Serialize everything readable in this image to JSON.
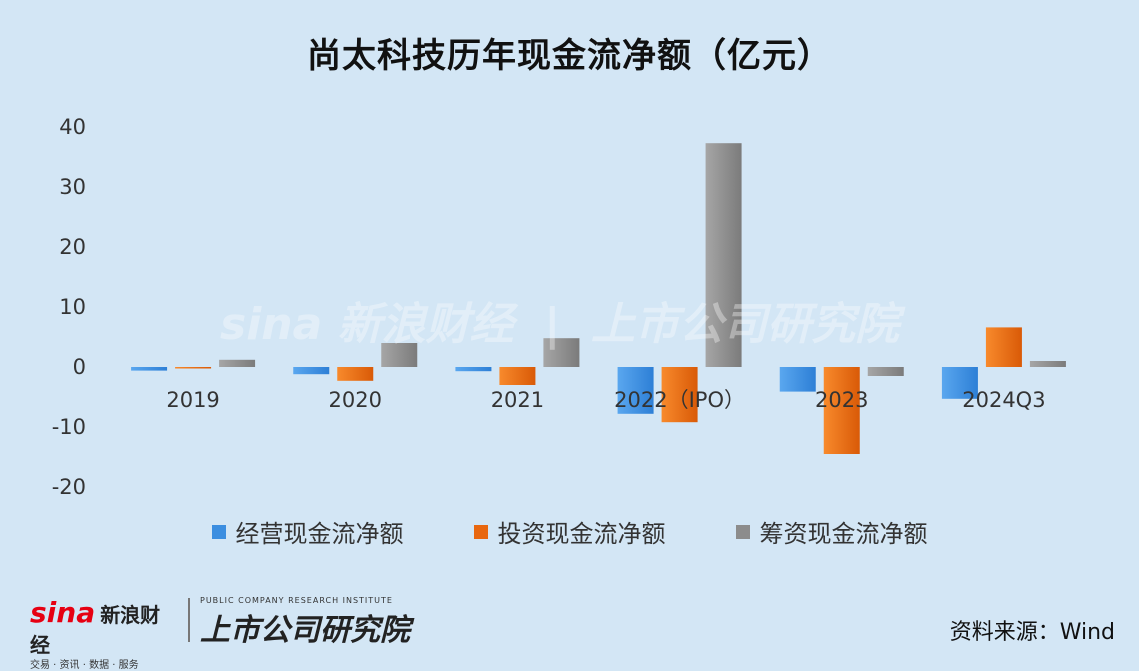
{
  "title": "尚太科技历年现金流净额（亿元）",
  "chart_data": {
    "type": "bar",
    "categories": [
      "2019",
      "2020",
      "2021",
      "2022（IPO）",
      "2023",
      "2024Q3"
    ],
    "series": [
      {
        "name": "经营现金流净额",
        "values": [
          -0.6,
          -1.2,
          -0.7,
          -7.8,
          -4.1,
          -5.3
        ]
      },
      {
        "name": "投资现金流净额",
        "values": [
          -0.2,
          -2.3,
          -3.0,
          -9.2,
          -14.5,
          6.6
        ]
      },
      {
        "name": "筹资现金流净额",
        "values": [
          1.2,
          4.0,
          4.8,
          37.3,
          -1.5,
          1.0
        ]
      }
    ],
    "ylim": [
      -20,
      40
    ],
    "yticks": [
      40,
      30,
      20,
      10,
      0,
      -10,
      -20
    ],
    "legend": "bottom",
    "grid": false,
    "colors": [
      "#3b8ee0",
      "#e8670f",
      "#8c8c8c"
    ]
  },
  "source": "资料来源：Wind",
  "logos": {
    "sina_mark": "sina",
    "sina_name": "新浪财经",
    "sina_sub": "交易 · 资讯 · 数据 · 服务",
    "institute_en": "PUBLIC COMPANY RESEARCH INSTITUTE",
    "institute_cn": "上市公司研究院"
  }
}
